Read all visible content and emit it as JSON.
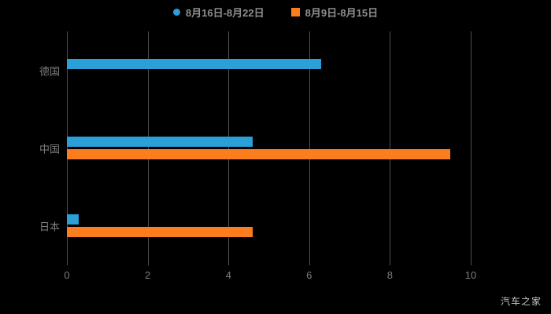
{
  "legend": [
    {
      "label": "8月16日-8月22日",
      "color": "#2A9FD8",
      "marker": "circle"
    },
    {
      "label": "8月9日-8月15日",
      "color": "#FC7D1D",
      "marker": "square"
    }
  ],
  "watermark": "汽车之家",
  "chart_data": {
    "type": "bar",
    "orientation": "horizontal",
    "title": "",
    "xlabel": "",
    "ylabel": "",
    "categories": [
      "德国",
      "中国",
      "日本"
    ],
    "series": [
      {
        "name": "8月16日-8月22日",
        "color": "#2A9FD8",
        "values": [
          6.3,
          4.6,
          0.3
        ]
      },
      {
        "name": "8月9日-8月15日",
        "color": "#FC7D1D",
        "values": [
          0,
          9.5,
          4.6
        ]
      }
    ],
    "xlim": [
      0,
      10
    ],
    "xticks": [
      0,
      2,
      4,
      6,
      8,
      10
    ],
    "grid": true,
    "gridline_color": "#4f4f4f",
    "background": "#000000",
    "legend_position": "top"
  }
}
